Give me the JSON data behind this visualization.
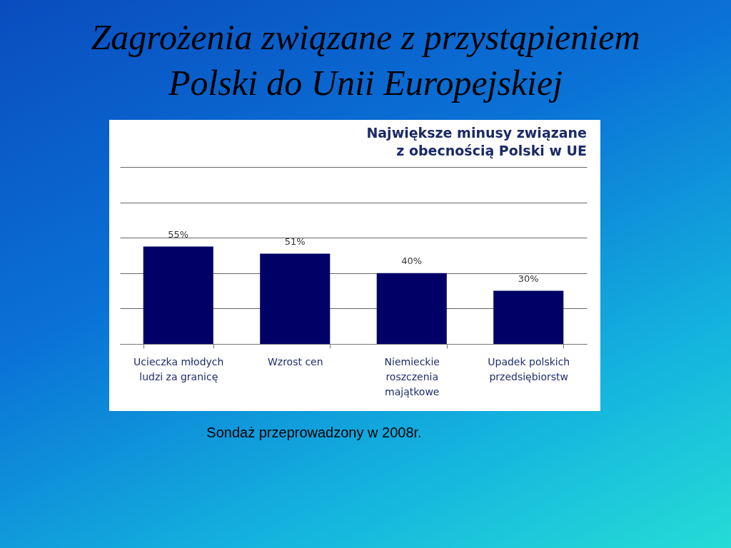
{
  "chart_data": {
    "type": "bar",
    "title": "Zagrożenia związane z przystąpieniem Polski do Unii Europejskiej",
    "subtitle": "Największe minusy związane z obecnością Polski w UE",
    "categories": [
      "Ucieczka młodych ludzi za granicę",
      "Wzrost cen",
      "Niemieckie roszczenia majątkowe",
      "Upadek polskich przedsiębiorstw"
    ],
    "values": [
      55,
      51,
      40,
      30
    ],
    "value_labels": [
      "55%",
      "51%",
      "40%",
      "30%"
    ],
    "color": "#000066",
    "ylim": [
      0,
      100
    ],
    "yticks": [
      {
        "value": 0,
        "label": null
      },
      {
        "value": 20,
        "label": null
      },
      {
        "value": 40,
        "label": null
      },
      {
        "value": 60,
        "label": null
      },
      {
        "value": 80,
        "label": null
      },
      {
        "value": 100,
        "label": null
      }
    ],
    "grid": "y",
    "tick_labels": "x",
    "annotations": [
      "Sondaż przeprowadzony w 2008r."
    ]
  }
}
